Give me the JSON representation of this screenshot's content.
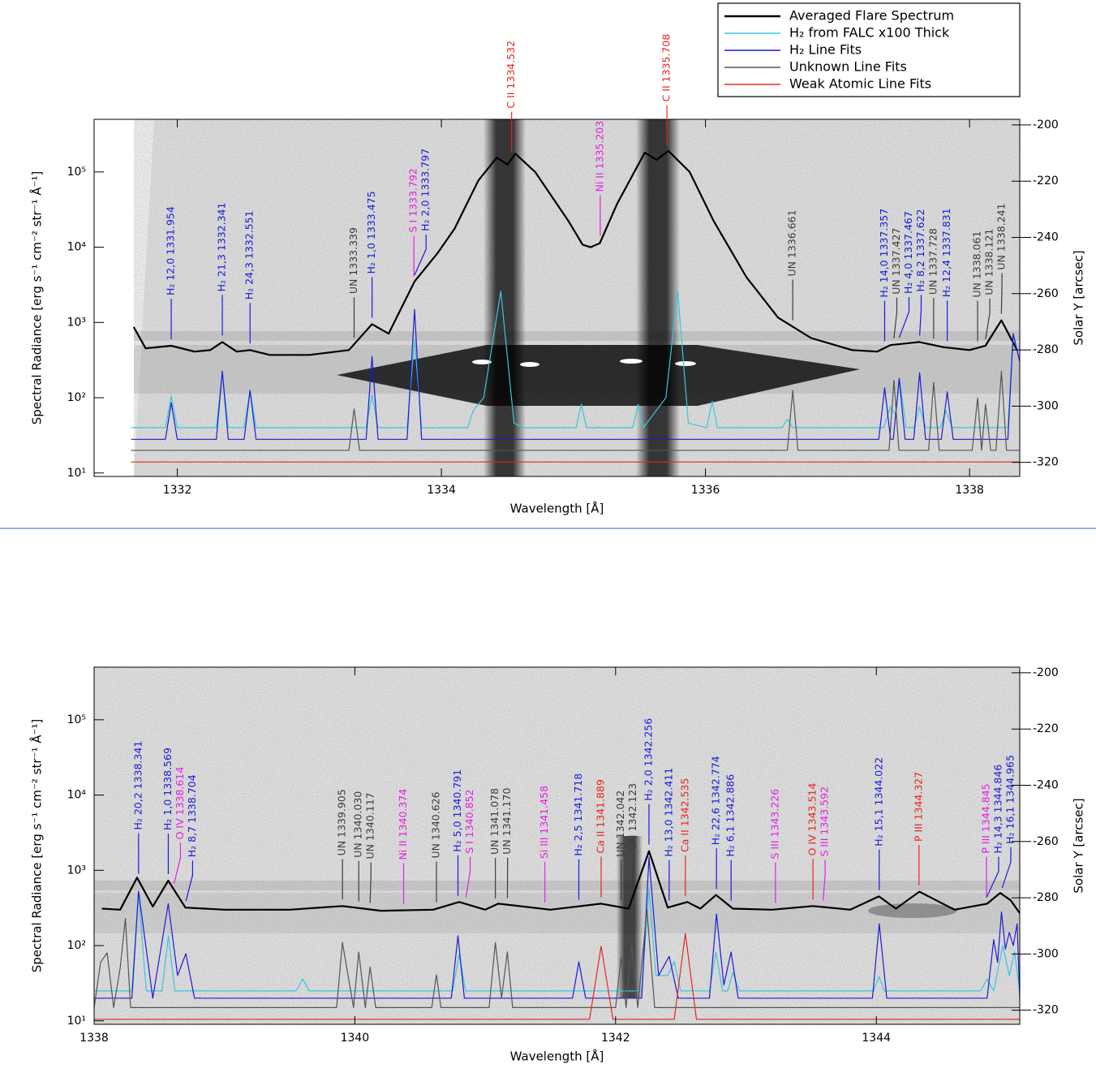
{
  "chart_data": [
    {
      "type": "line",
      "log_y": true,
      "xlabel": "Wavelength [Å]",
      "ylabel": "Spectral Radiance [erg s⁻¹ cm⁻² str⁻¹ Å⁻¹]",
      "y2label": "Solar Y [arcsec]",
      "xlim": [
        1331.37,
        1338.38
      ],
      "xticks": [
        1332,
        1334,
        1336,
        1338
      ],
      "ylim": [
        9,
        500000
      ],
      "yticks": [
        {
          "value": 10,
          "label": "10¹"
        },
        {
          "value": 100,
          "label": "10²"
        },
        {
          "value": 1000,
          "label": "10³"
        },
        {
          "value": 10000,
          "label": "10⁴"
        },
        {
          "value": 100000,
          "label": "10⁵"
        }
      ],
      "y2lim": [
        -325,
        -198
      ],
      "y2ticks": [
        -200,
        -220,
        -240,
        -260,
        -280,
        -300,
        -320
      ],
      "series": [
        {
          "name": "Averaged Flare Spectrum",
          "color": "#000000",
          "x": [
            1331.67,
            1331.76,
            1331.954,
            1332.13,
            1332.25,
            1332.341,
            1332.45,
            1332.551,
            1332.7,
            1333.0,
            1333.3,
            1333.475,
            1333.6,
            1333.797,
            1333.97,
            1334.1,
            1334.28,
            1334.42,
            1334.5,
            1334.56,
            1334.71,
            1334.96,
            1335.07,
            1335.13,
            1335.2,
            1335.33,
            1335.54,
            1335.63,
            1335.72,
            1335.88,
            1336.06,
            1336.31,
            1336.55,
            1336.8,
            1337.11,
            1337.3,
            1337.4,
            1337.62,
            1337.8,
            1338.0,
            1338.12,
            1338.241,
            1338.36
          ],
          "values": [
            870,
            453,
            490,
            410,
            430,
            550,
            410,
            430,
            370,
            370,
            430,
            950,
            710,
            3500,
            8300,
            17700,
            77000,
            155000,
            125000,
            175000,
            100000,
            22600,
            10800,
            10000,
            11300,
            37500,
            180000,
            145000,
            190000,
            100000,
            22600,
            4000,
            1160,
            620,
            430,
            410,
            500,
            550,
            470,
            430,
            490,
            1070,
            430
          ]
        },
        {
          "name": "H₂ from FALC x100 Thick",
          "color": "#38c6e0",
          "x": [
            1331.65,
            1331.91,
            1331.954,
            1332.0,
            1332.296,
            1332.341,
            1332.386,
            1332.506,
            1332.551,
            1332.596,
            1333.43,
            1333.475,
            1333.52,
            1333.74,
            1333.797,
            1333.85,
            1334.2,
            1334.24,
            1334.32,
            1334.45,
            1334.55,
            1334.62,
            1335.02,
            1335.06,
            1335.1,
            1335.45,
            1335.49,
            1335.53,
            1335.7,
            1335.79,
            1335.87,
            1336.01,
            1336.05,
            1336.09,
            1336.58,
            1336.62,
            1336.66,
            1337.35,
            1337.4,
            1337.44,
            1337.47,
            1337.52,
            1337.58,
            1337.62,
            1337.67,
            1337.78,
            1337.82,
            1337.87,
            1338.29,
            1338.33,
            1338.38
          ],
          "values": [
            40,
            40,
            105,
            40,
            40,
            225,
            40,
            40,
            125,
            40,
            40,
            110,
            40,
            40,
            590,
            40,
            40,
            67,
            100,
            2600,
            46,
            40,
            40,
            82,
            40,
            40,
            82,
            40,
            100,
            2600,
            46,
            40,
            90,
            40,
            40,
            52,
            40,
            40,
            76,
            60,
            173,
            40,
            40,
            76,
            40,
            40,
            67,
            40,
            40,
            710,
            300
          ]
        },
        {
          "name": "H₂ Line Fits",
          "color": "#1c1cd0",
          "x": [
            1331.65,
            1331.91,
            1331.954,
            1332.0,
            1332.296,
            1332.341,
            1332.386,
            1332.506,
            1332.551,
            1332.596,
            1333.43,
            1333.475,
            1333.52,
            1333.74,
            1333.797,
            1333.85,
            1337.312,
            1337.357,
            1337.402,
            1337.422,
            1337.467,
            1337.512,
            1337.577,
            1337.622,
            1337.667,
            1337.786,
            1337.831,
            1337.876,
            1338.29,
            1338.33,
            1338.38
          ],
          "values": [
            28,
            28,
            86,
            28,
            28,
            225,
            28,
            28,
            125,
            28,
            28,
            355,
            28,
            28,
            1490,
            28,
            28,
            135,
            28,
            28,
            180,
            28,
            28,
            215,
            28,
            28,
            120,
            28,
            28,
            710,
            300
          ]
        },
        {
          "name": "Unknown Line Fits",
          "color": "#555555",
          "x": [
            1331.65,
            1333.3,
            1333.339,
            1333.38,
            1336.62,
            1336.661,
            1336.7,
            1337.39,
            1337.427,
            1337.465,
            1337.69,
            1337.728,
            1337.77,
            1338.02,
            1338.061,
            1338.091,
            1338.121,
            1338.16,
            1338.2,
            1338.241,
            1338.28,
            1338.38
          ],
          "values": [
            20,
            20,
            71,
            20,
            20,
            125,
            20,
            20,
            170,
            20,
            20,
            160,
            20,
            20,
            100,
            20,
            82,
            20,
            20,
            225,
            20,
            20
          ]
        },
        {
          "name": "Weak Atomic Line Fits",
          "color": "#e8261e",
          "x": [
            1331.65,
            1338.38
          ],
          "values": [
            14,
            14
          ]
        }
      ],
      "annotations": [
        {
          "text": "H₂ 12,0 1331.954",
          "x": 1331.954,
          "color": "#1a1ae0"
        },
        {
          "text": "H₂ 21,3 1332.341",
          "x": 1332.341,
          "color": "#1a1ae0"
        },
        {
          "text": "H₂ 24,3 1332.551",
          "x": 1332.551,
          "color": "#1a1ae0"
        },
        {
          "text": "UN 1333.339",
          "x": 1333.339,
          "color": "#3c3c3c"
        },
        {
          "text": "H₂ 1,0 1333.475",
          "x": 1333.475,
          "color": "#1a1ae0"
        },
        {
          "text": "S I 1333.792",
          "x": 1333.792,
          "color": "#e61ee6"
        },
        {
          "text": "H₂ 2,0 1333.797",
          "x": 1333.797,
          "color": "#1a1ae0"
        },
        {
          "text": "C II 1334.532",
          "x": 1334.532,
          "color": "#e8261e"
        },
        {
          "text": "Ni II 1335.203",
          "x": 1335.203,
          "color": "#e61ee6"
        },
        {
          "text": "C II 1335.708",
          "x": 1335.708,
          "color": "#e8261e"
        },
        {
          "text": "UN 1336.661",
          "x": 1336.661,
          "color": "#3c3c3c"
        },
        {
          "text": "H₂ 14,0 1337.357",
          "x": 1337.357,
          "color": "#1a1ae0"
        },
        {
          "text": "UN 1337.427",
          "x": 1337.427,
          "color": "#3c3c3c"
        },
        {
          "text": "H₂ 4,0 1337.467",
          "x": 1337.467,
          "color": "#1a1ae0"
        },
        {
          "text": "H₂ 8,2 1337.622",
          "x": 1337.622,
          "color": "#1a1ae0"
        },
        {
          "text": "UN 1337.728",
          "x": 1337.728,
          "color": "#3c3c3c"
        },
        {
          "text": "H₂ 12,4 1337.831",
          "x": 1337.831,
          "color": "#1a1ae0"
        },
        {
          "text": "UN 1338.061",
          "x": 1338.061,
          "color": "#3c3c3c"
        },
        {
          "text": "UN 1338.121",
          "x": 1338.121,
          "color": "#3c3c3c"
        },
        {
          "text": "UN 1338.241",
          "x": 1338.241,
          "color": "#3c3c3c"
        }
      ]
    },
    {
      "type": "line",
      "log_y": true,
      "xlabel": "Wavelength [Å]",
      "ylabel": "Spectral Radiance [erg s⁻¹ cm⁻² str⁻¹ Å⁻¹]",
      "y2label": "Solar Y [arcsec]",
      "xlim": [
        1338.0,
        1345.1
      ],
      "xticks": [
        1338,
        1340,
        1342,
        1344
      ],
      "ylim": [
        9,
        500000
      ],
      "yticks": [
        {
          "value": 10,
          "label": "10¹"
        },
        {
          "value": 100,
          "label": "10²"
        },
        {
          "value": 1000,
          "label": "10³"
        },
        {
          "value": 10000,
          "label": "10⁴"
        },
        {
          "value": 100000,
          "label": "10⁵"
        }
      ],
      "y2lim": [
        -325,
        -198
      ],
      "y2ticks": [
        -200,
        -220,
        -240,
        -260,
        -280,
        -300,
        -320
      ],
      "series": [
        {
          "color": "#000000",
          "x": [
            1338.06,
            1338.2,
            1338.33,
            1338.45,
            1338.569,
            1338.7,
            1339.0,
            1339.5,
            1339.905,
            1340.2,
            1340.6,
            1340.8,
            1341.0,
            1341.1,
            1341.5,
            1341.889,
            1342.1,
            1342.256,
            1342.4,
            1342.55,
            1342.65,
            1342.77,
            1342.9,
            1343.2,
            1343.514,
            1343.8,
            1344.02,
            1344.15,
            1344.33,
            1344.6,
            1344.85,
            1344.95,
            1345.03,
            1345.1
          ],
          "values": [
            310,
            300,
            800,
            330,
            730,
            320,
            300,
            300,
            335,
            290,
            300,
            380,
            300,
            360,
            300,
            360,
            310,
            1800,
            320,
            380,
            310,
            470,
            310,
            300,
            335,
            300,
            450,
            310,
            520,
            300,
            360,
            500,
            400,
            270
          ]
        },
        {
          "color": "#38c6e0",
          "x": [
            1338.0,
            1338.29,
            1338.34,
            1338.4,
            1338.52,
            1338.57,
            1338.62,
            1339.55,
            1339.6,
            1339.65,
            1340.75,
            1340.8,
            1340.85,
            1342.2,
            1342.256,
            1342.31,
            1342.4,
            1342.45,
            1342.5,
            1342.72,
            1342.77,
            1342.82,
            1342.86,
            1342.9,
            1342.95,
            1343.98,
            1344.02,
            1344.06,
            1344.8,
            1344.85,
            1344.9,
            1344.97,
            1345.02,
            1345.06,
            1345.1
          ],
          "values": [
            25,
            25,
            525,
            25,
            25,
            135,
            25,
            25,
            36,
            25,
            25,
            76,
            25,
            25,
            565,
            40,
            40,
            61,
            25,
            25,
            82,
            25,
            25,
            44,
            25,
            25,
            39,
            25,
            25,
            36,
            25,
            100,
            40,
            82,
            25
          ]
        },
        {
          "color": "#1c1cd0",
          "x": [
            1338.0,
            1338.29,
            1338.341,
            1338.45,
            1338.569,
            1338.64,
            1338.704,
            1338.77,
            1340.74,
            1340.791,
            1340.84,
            1341.67,
            1341.718,
            1341.77,
            1342.2,
            1342.256,
            1342.33,
            1342.411,
            1342.48,
            1342.72,
            1342.774,
            1342.83,
            1342.886,
            1342.94,
            1343.97,
            1344.022,
            1344.08,
            1344.85,
            1344.9,
            1344.93,
            1344.96,
            1344.99,
            1345.02,
            1345.05,
            1345.08,
            1345.1
          ],
          "values": [
            20,
            20,
            525,
            20,
            360,
            40,
            78,
            20,
            20,
            135,
            20,
            20,
            61,
            20,
            20,
            1500,
            40,
            72,
            20,
            20,
            263,
            30,
            82,
            20,
            20,
            195,
            20,
            20,
            120,
            60,
            280,
            90,
            150,
            100,
            195,
            20
          ]
        },
        {
          "color": "#555555",
          "x": [
            1338.0,
            1338.05,
            1338.1,
            1338.15,
            1338.2,
            1338.24,
            1338.28,
            1339.86,
            1339.905,
            1339.99,
            1340.03,
            1340.08,
            1340.117,
            1340.16,
            1340.59,
            1340.626,
            1340.66,
            1341.03,
            1341.078,
            1341.125,
            1341.17,
            1341.21,
            1342.0,
            1342.042,
            1342.08,
            1342.123,
            1342.17,
            1342.24,
            1342.3,
            1345.1
          ],
          "values": [
            15,
            60,
            80,
            15,
            50,
            230,
            15,
            15,
            110,
            15,
            82,
            15,
            52,
            15,
            15,
            41,
            15,
            15,
            110,
            20,
            82,
            15,
            15,
            70,
            15,
            100,
            15,
            300,
            15,
            15
          ]
        },
        {
          "color": "#e8261e",
          "x": [
            1338.0,
            1341.8,
            1341.889,
            1341.98,
            1342.45,
            1342.535,
            1342.62,
            1345.1
          ],
          "values": [
            10.5,
            10.5,
            98,
            10.5,
            10.5,
            145,
            10.5,
            10.5
          ]
        }
      ],
      "annotations": [
        {
          "text": "H₂ 20,2 1338.341",
          "x": 1338.341,
          "color": "#1a1ae0"
        },
        {
          "text": "H₂ 1,0 1338.569",
          "x": 1338.569,
          "color": "#1a1ae0"
        },
        {
          "text": "O IV 1338.614",
          "x": 1338.614,
          "color": "#e61ee6"
        },
        {
          "text": "H₂ 8,7 1338.704",
          "x": 1338.704,
          "color": "#1a1ae0"
        },
        {
          "text": "UN 1339.905",
          "x": 1339.905,
          "color": "#3c3c3c"
        },
        {
          "text": "UN 1340.030",
          "x": 1340.03,
          "color": "#3c3c3c"
        },
        {
          "text": "UN 1340.117",
          "x": 1340.117,
          "color": "#3c3c3c"
        },
        {
          "text": "Ni II 1340.374",
          "x": 1340.374,
          "color": "#e61ee6"
        },
        {
          "text": "UN 1340.626",
          "x": 1340.626,
          "color": "#3c3c3c"
        },
        {
          "text": "H₂ 5,0 1340.791",
          "x": 1340.791,
          "color": "#1a1ae0"
        },
        {
          "text": "S I 1340.852",
          "x": 1340.852,
          "color": "#e61ee6"
        },
        {
          "text": "UN 1341.078",
          "x": 1341.078,
          "color": "#3c3c3c"
        },
        {
          "text": "UN 1341.170",
          "x": 1341.17,
          "color": "#3c3c3c"
        },
        {
          "text": "Si III 1341.458",
          "x": 1341.458,
          "color": "#e61ee6"
        },
        {
          "text": "H₂ 2,5 1341.718",
          "x": 1341.718,
          "color": "#1a1ae0"
        },
        {
          "text": "Ca II 1341.889",
          "x": 1341.889,
          "color": "#e8261e"
        },
        {
          "text": "UN 1342.042",
          "x": 1342.042,
          "color": "#3c3c3c"
        },
        {
          "text": "UN 1342.123",
          "x": 1342.123,
          "color": "#3c3c3c"
        },
        {
          "text": "H₂ 2,0 1342.256",
          "x": 1342.256,
          "color": "#1a1ae0"
        },
        {
          "text": "H₂ 13,0 1342.411",
          "x": 1342.411,
          "color": "#1a1ae0"
        },
        {
          "text": "Ca II 1342.535",
          "x": 1342.535,
          "color": "#e8261e"
        },
        {
          "text": "H₂ 22,6 1342.774",
          "x": 1342.774,
          "color": "#1a1ae0"
        },
        {
          "text": "H₂ 6,1 1342.886",
          "x": 1342.886,
          "color": "#1a1ae0"
        },
        {
          "text": "S III 1343.226",
          "x": 1343.226,
          "color": "#e61ee6"
        },
        {
          "text": "O IV 1343.514",
          "x": 1343.514,
          "color": "#e8261e"
        },
        {
          "text": "S III 1343.592",
          "x": 1343.592,
          "color": "#e61ee6"
        },
        {
          "text": "H₂ 15,1 1344.022",
          "x": 1344.022,
          "color": "#1a1ae0"
        },
        {
          "text": "P III 1344.327",
          "x": 1344.327,
          "color": "#e8261e"
        },
        {
          "text": "P III 1344.845",
          "x": 1344.845,
          "color": "#e61ee6"
        },
        {
          "text": "H₂ 14,3 1344.846",
          "x": 1344.846,
          "color": "#1a1ae0"
        },
        {
          "text": "H₂ 16,1 1344.965",
          "x": 1344.965,
          "color": "#1a1ae0"
        }
      ]
    }
  ]
}
